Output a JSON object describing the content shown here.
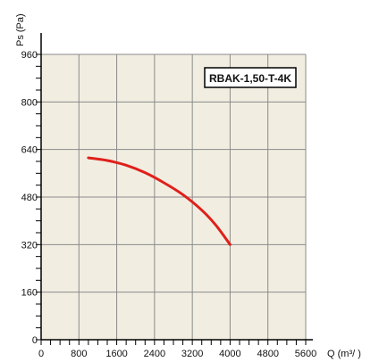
{
  "chart_data": {
    "type": "line",
    "title": "",
    "xlabel": "Q (m³/  )",
    "ylabel": "Ps (Pa)",
    "xlim": [
      0,
      5600
    ],
    "ylim": [
      0,
      960
    ],
    "x_ticks": [
      0,
      800,
      1600,
      2400,
      3200,
      4000,
      4800,
      5600
    ],
    "y_ticks": [
      0,
      160,
      320,
      480,
      640,
      800,
      960
    ],
    "x_tick_labels": [
      "0",
      "800",
      "1600",
      "2400",
      "3200",
      "4000",
      "4800",
      "5600"
    ],
    "y_tick_labels": [
      "0",
      "160",
      "320",
      "480",
      "640",
      "800",
      "960"
    ],
    "grid": true,
    "series": [
      {
        "name": "RBAK-1,50-T-4K",
        "color": "#e0201b",
        "x": [
          1000,
          1400,
          1800,
          2200,
          2600,
          3000,
          3400,
          3700,
          4000
        ],
        "y": [
          612,
          603,
          587,
          562,
          528,
          488,
          436,
          385,
          320
        ]
      }
    ],
    "legend_placement": "top-right"
  },
  "colors": {
    "plot_background": "#f1eee1",
    "grid": "#8a8a8a",
    "axis": "#000000"
  }
}
